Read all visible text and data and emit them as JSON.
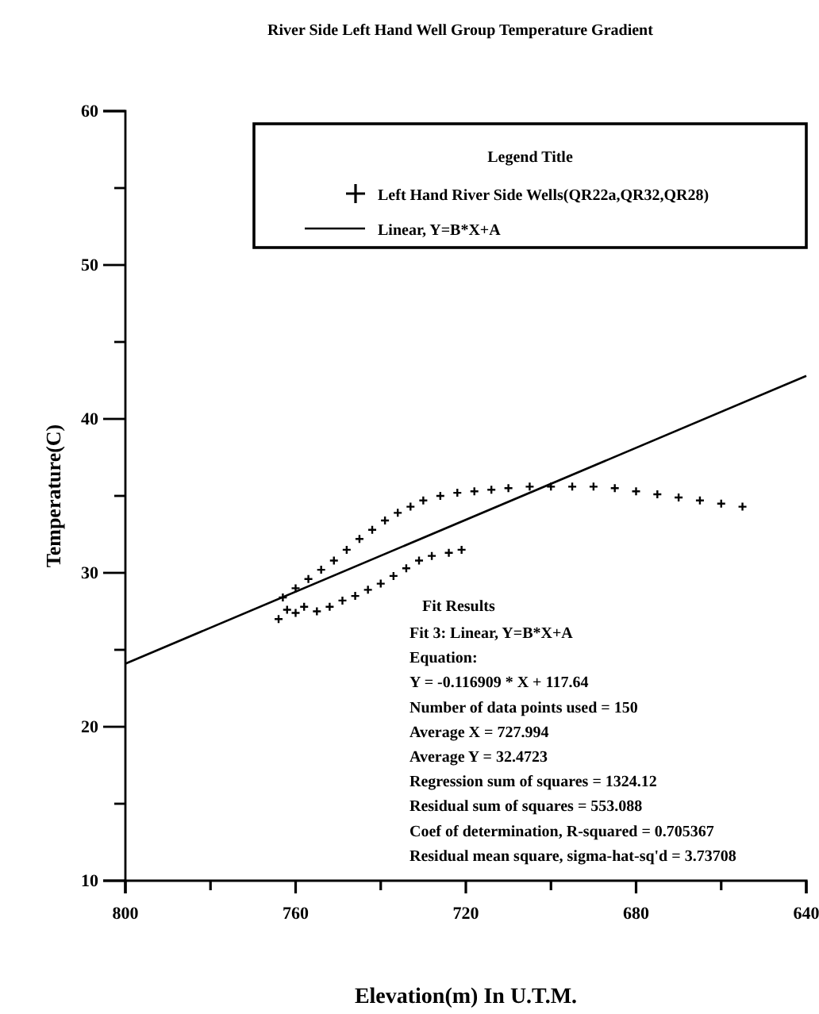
{
  "chart_data": {
    "type": "scatter",
    "title": "River Side  Left Hand Well Group Temperature Gradient",
    "xlabel": "Elevation(m) In U.T.M.",
    "ylabel": "Temperature(C)",
    "legend_title": "Legend Title",
    "legend": "top right",
    "grid": false,
    "xlim": [
      800,
      640
    ],
    "xticks": [
      800,
      {
        "value": 780,
        "label": null
      },
      760,
      {
        "value": 740,
        "label": null
      },
      720,
      {
        "value": 700,
        "label": null
      },
      680,
      {
        "value": 660,
        "label": null
      },
      640
    ],
    "ylim": [
      10,
      60
    ],
    "yticks": [
      10,
      {
        "value": 15,
        "label": null
      },
      20,
      {
        "value": 25,
        "label": null
      },
      30,
      {
        "value": 35,
        "label": null
      },
      40,
      {
        "value": 45,
        "label": null
      },
      50,
      {
        "value": 55,
        "label": null
      },
      60
    ],
    "series": [
      {
        "name": "Left Hand River Side Wells(QR22a,QR32,QR28)",
        "marker": "cross",
        "color": "#000000",
        "x": [
          763,
          760,
          757,
          754,
          751,
          748,
          745,
          742,
          739,
          736,
          733,
          730,
          726,
          722,
          718,
          714,
          710,
          705,
          700,
          695,
          690,
          685,
          680,
          675,
          670,
          665,
          660,
          655,
          764,
          762,
          760,
          758,
          755,
          752,
          749,
          746,
          743,
          740,
          737,
          734,
          731,
          728,
          724,
          721
        ],
        "values": [
          28.4,
          29.0,
          29.6,
          30.2,
          30.8,
          31.5,
          32.2,
          32.8,
          33.4,
          33.9,
          34.3,
          34.7,
          35.0,
          35.2,
          35.3,
          35.4,
          35.5,
          35.6,
          35.6,
          35.6,
          35.6,
          35.5,
          35.3,
          35.1,
          34.9,
          34.7,
          34.5,
          34.3,
          27.0,
          27.6,
          27.4,
          27.8,
          27.5,
          27.8,
          28.2,
          28.5,
          28.9,
          29.3,
          29.8,
          30.3,
          30.8,
          31.1,
          31.3,
          31.5
        ]
      },
      {
        "name": "Linear, Y=B*X+A",
        "type": "line",
        "color": "#000000",
        "line_style": "solid",
        "x": [
          800,
          640
        ],
        "values": [
          24.1,
          42.8
        ]
      }
    ],
    "annotations": [
      "Fit Results",
      "Fit 3:  Linear, Y=B*X+A",
      "Equation:",
      "Y = -0.116909 * X + 117.64",
      "Number of data points used = 150",
      "Average X = 727.994",
      "Average Y = 32.4723",
      "Regression sum of squares = 1324.12",
      "Residual sum of squares = 553.088",
      "Coef of determination, R-squared = 0.705367",
      "Residual mean square, sigma-hat-sq'd = 3.73708"
    ]
  }
}
